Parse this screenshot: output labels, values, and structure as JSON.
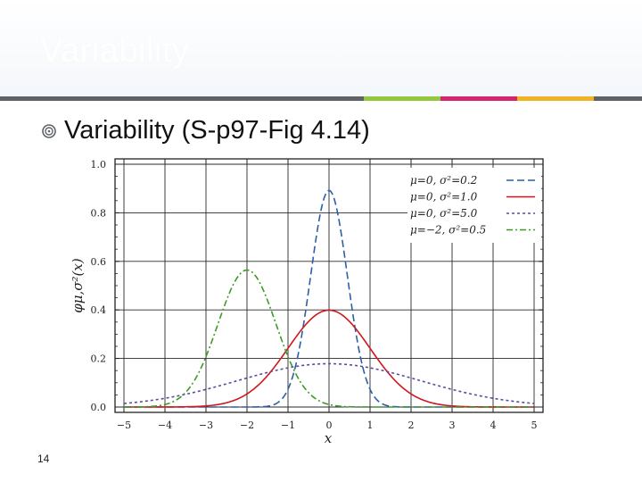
{
  "slide": {
    "title": "Variability",
    "bullet": "Variability (S-p97-Fig 4.14)",
    "page_number": "14",
    "colors": {
      "rule_gray": "#5f6367",
      "rule_green": "#92c83e",
      "rule_pink": "#d6246e",
      "rule_orange": "#f0b323",
      "bullet_icon": "#5f6367"
    }
  },
  "chart_data": {
    "type": "line",
    "xlabel": "x",
    "ylabel": "φμ,σ²(x)",
    "xlim": [
      -5,
      5
    ],
    "ylim": [
      0,
      1.0
    ],
    "x_ticks": [
      "−5",
      "−4",
      "−3",
      "−2",
      "−1",
      "0",
      "1",
      "2",
      "3",
      "4",
      "5"
    ],
    "y_ticks": [
      "0.0",
      "0.2",
      "0.4",
      "0.6",
      "0.8",
      "1.0"
    ],
    "grid": true,
    "legend_position": "top-right",
    "series": [
      {
        "name": "μ=0,   σ²=0.2",
        "mu": 0,
        "sigma2": 0.2,
        "color": "#2b5fa8",
        "dash": "8,4"
      },
      {
        "name": "μ=0,   σ²=1.0",
        "mu": 0,
        "sigma2": 1.0,
        "color": "#d0181c",
        "dash": ""
      },
      {
        "name": "μ=0,   σ²=5.0",
        "mu": 0,
        "sigma2": 5.0,
        "color": "#5c4a9c",
        "dash": "3,3"
      },
      {
        "name": "μ=−2, σ²=0.5",
        "mu": -2,
        "sigma2": 0.5,
        "color": "#3e9a27",
        "dash": "7,3,2,3"
      }
    ]
  }
}
